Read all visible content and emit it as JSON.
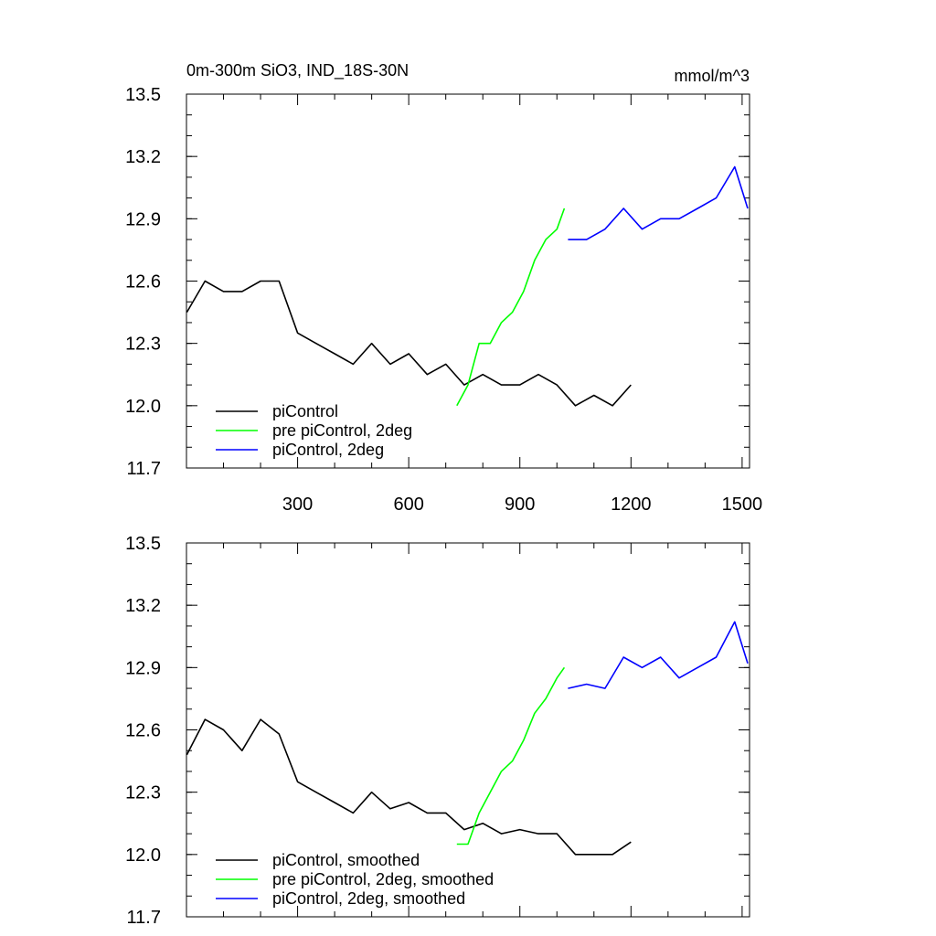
{
  "chart_data": [
    {
      "type": "line",
      "title": "0m-300m SiO3, IND_18S-30N",
      "units": "mmol/m^3",
      "xlim": [
        0,
        1520
      ],
      "ylim": [
        11.7,
        13.5
      ],
      "yticks": [
        "11.7",
        "12.0",
        "12.3",
        "12.6",
        "12.9",
        "13.2",
        "13.5"
      ],
      "xtick_labels": [
        "300",
        "600",
        "900",
        "1200",
        "1500"
      ],
      "legend_position": "bottom-left",
      "series": [
        {
          "name": "piControl",
          "color": "#000000",
          "x": [
            1,
            50,
            100,
            150,
            200,
            250,
            300,
            350,
            400,
            450,
            500,
            550,
            600,
            650,
            700,
            750,
            800,
            850,
            900,
            950,
            1000,
            1050,
            1100,
            1150,
            1200
          ],
          "y": [
            12.45,
            12.6,
            12.55,
            12.55,
            12.6,
            12.6,
            12.35,
            12.3,
            12.25,
            12.2,
            12.3,
            12.2,
            12.25,
            12.15,
            12.2,
            12.1,
            12.15,
            12.1,
            12.1,
            12.15,
            12.1,
            12.0,
            12.05,
            12.0,
            12.1
          ]
        },
        {
          "name": "pre piControl, 2deg",
          "color": "#00ff00",
          "x": [
            730,
            760,
            790,
            820,
            850,
            880,
            910,
            940,
            970,
            1000,
            1020
          ],
          "y": [
            12.0,
            12.1,
            12.3,
            12.3,
            12.4,
            12.45,
            12.55,
            12.7,
            12.8,
            12.85,
            12.95
          ]
        },
        {
          "name": "piControl, 2deg",
          "color": "#0000ff",
          "x": [
            1030,
            1080,
            1130,
            1180,
            1230,
            1280,
            1330,
            1380,
            1430,
            1480,
            1515
          ],
          "y": [
            12.8,
            12.8,
            12.85,
            12.95,
            12.85,
            12.9,
            12.9,
            12.95,
            13.0,
            13.15,
            12.95
          ]
        }
      ]
    },
    {
      "type": "line",
      "xlim": [
        0,
        1520
      ],
      "ylim": [
        11.7,
        13.5
      ],
      "yticks": [
        "11.7",
        "12.0",
        "12.3",
        "12.6",
        "12.9",
        "13.2",
        "13.5"
      ],
      "legend_position": "bottom-left",
      "series": [
        {
          "name": "piControl, smoothed",
          "color": "#000000",
          "x": [
            1,
            50,
            100,
            150,
            200,
            250,
            300,
            350,
            400,
            450,
            500,
            550,
            600,
            650,
            700,
            750,
            800,
            850,
            900,
            950,
            1000,
            1050,
            1100,
            1150,
            1200
          ],
          "y": [
            12.48,
            12.65,
            12.6,
            12.5,
            12.65,
            12.58,
            12.35,
            12.3,
            12.25,
            12.2,
            12.3,
            12.22,
            12.25,
            12.2,
            12.2,
            12.12,
            12.15,
            12.1,
            12.12,
            12.1,
            12.1,
            12.0,
            12.0,
            12.0,
            12.06
          ]
        },
        {
          "name": "pre piControl, 2deg, smoothed",
          "color": "#00ff00",
          "x": [
            730,
            760,
            790,
            820,
            850,
            880,
            910,
            940,
            970,
            1000,
            1020
          ],
          "y": [
            12.05,
            12.05,
            12.2,
            12.3,
            12.4,
            12.45,
            12.55,
            12.68,
            12.75,
            12.85,
            12.9
          ]
        },
        {
          "name": "piControl, 2deg, smoothed",
          "color": "#0000ff",
          "x": [
            1030,
            1080,
            1130,
            1180,
            1230,
            1280,
            1330,
            1380,
            1430,
            1480,
            1515
          ],
          "y": [
            12.8,
            12.82,
            12.8,
            12.95,
            12.9,
            12.95,
            12.85,
            12.9,
            12.95,
            13.12,
            12.92
          ]
        }
      ]
    }
  ]
}
